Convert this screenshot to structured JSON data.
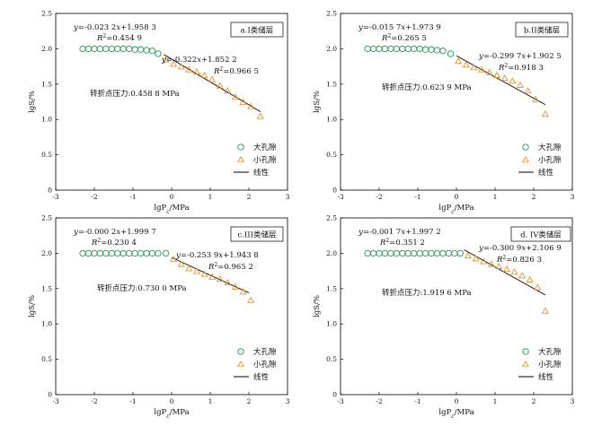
{
  "legend": {
    "large_pore": "大孔隙",
    "small_pore": "小孔隙",
    "linear": "线性"
  },
  "colors": {
    "large_pore": "#1f9a4a",
    "small_pore": "#e8912a",
    "line": "#000000"
  },
  "chart_data": [
    {
      "type": "scatter",
      "title": "a.I类储层",
      "xlabel": "lgP_c/MPa",
      "ylabel": "lgS/%",
      "xlim": [
        -3,
        3
      ],
      "ylim": [
        0,
        2.5
      ],
      "x_ticks": [
        "-3",
        "-2",
        "-1",
        "0",
        "1",
        "2",
        "3"
      ],
      "y_ticks": [
        "0",
        "0.5",
        "1.0",
        "1.5",
        "2.0",
        "2.5"
      ],
      "eq1_line1": "y=-0.023 2x+1.958 3",
      "eq1_line2": "R²=0.454 9",
      "eq2_line1": "y=-0.322x+1.852 2",
      "eq2_line2": "R²=0.966 5",
      "turning_point": "转折点压力:0.458 8 MPa",
      "series": [
        {
          "name": "大孔隙",
          "x": [
            -2.3,
            -2.15,
            -2.0,
            -1.85,
            -1.7,
            -1.55,
            -1.4,
            -1.25,
            -1.1,
            -0.95,
            -0.8,
            -0.65,
            -0.5,
            -0.35
          ],
          "y": [
            2.0,
            2.0,
            2.0,
            2.0,
            2.0,
            2.0,
            2.0,
            2.0,
            2.0,
            1.99,
            1.99,
            1.98,
            1.97,
            1.93
          ]
        },
        {
          "name": "小孔隙",
          "x": [
            -0.15,
            0.05,
            0.25,
            0.45,
            0.65,
            0.85,
            1.05,
            1.25,
            1.45,
            1.65,
            1.85,
            2.05,
            2.3
          ],
          "y": [
            1.84,
            1.78,
            1.74,
            1.7,
            1.67,
            1.62,
            1.56,
            1.47,
            1.4,
            1.31,
            1.24,
            1.18,
            1.04
          ]
        },
        {
          "name": "线性",
          "x": [
            -0.2,
            2.3
          ],
          "y": [
            1.92,
            1.11
          ]
        }
      ]
    },
    {
      "type": "scatter",
      "title": "b.II类储层",
      "xlabel": "lgP_c/MPa",
      "ylabel": "lgS/%",
      "xlim": [
        -3,
        3
      ],
      "ylim": [
        0,
        2.5
      ],
      "x_ticks": [
        "-3",
        "-2",
        "-1",
        "0",
        "1",
        "2",
        "3"
      ],
      "y_ticks": [
        "0",
        "0.5",
        "1.0",
        "1.5",
        "2.0",
        "2.5"
      ],
      "eq1_line1": "y=-0.015 7x+1.973 9",
      "eq1_line2": "R²=0.265 5",
      "eq2_line1": "y=-0.299 7x+1.902 5",
      "eq2_line2": "R²=0.918 3",
      "turning_point": "转折点压力:0.623 9 MPa",
      "series": [
        {
          "name": "大孔隙",
          "x": [
            -2.3,
            -2.15,
            -2.0,
            -1.85,
            -1.7,
            -1.55,
            -1.4,
            -1.25,
            -1.1,
            -0.95,
            -0.8,
            -0.65,
            -0.5,
            -0.35,
            -0.15
          ],
          "y": [
            2.0,
            2.0,
            2.0,
            2.0,
            2.0,
            2.0,
            2.0,
            2.0,
            2.0,
            2.0,
            1.99,
            1.99,
            1.98,
            1.97,
            1.93
          ]
        },
        {
          "name": "小孔隙",
          "x": [
            0.05,
            0.25,
            0.45,
            0.65,
            0.85,
            1.05,
            1.25,
            1.45,
            1.65,
            1.85,
            2.05,
            2.3
          ],
          "y": [
            1.82,
            1.77,
            1.73,
            1.7,
            1.66,
            1.62,
            1.58,
            1.54,
            1.48,
            1.4,
            1.28,
            1.07
          ]
        },
        {
          "name": "线性",
          "x": [
            0.0,
            2.3
          ],
          "y": [
            1.9,
            1.21
          ]
        }
      ]
    },
    {
      "type": "scatter",
      "title": "c.III类储层",
      "xlabel": "lgP_c/MPa",
      "ylabel": "lgS/%",
      "xlim": [
        -3,
        3
      ],
      "ylim": [
        0,
        2.5
      ],
      "x_ticks": [
        "-3",
        "-2",
        "-1",
        "0",
        "1",
        "2",
        "3"
      ],
      "y_ticks": [
        "0",
        "0.5",
        "1.0",
        "1.5",
        "2.0",
        "2.5"
      ],
      "eq1_line1": "y=-0.000 2x+1.999 7",
      "eq1_line2": "R²=0.230 4",
      "eq2_line1": "y=-0.253 9x+1.943 8",
      "eq2_line2": "R²=0.965 2",
      "turning_point": "转折点压力:0.730 0 MPa",
      "series": [
        {
          "name": "大孔隙",
          "x": [
            -2.3,
            -2.15,
            -2.0,
            -1.85,
            -1.7,
            -1.55,
            -1.4,
            -1.25,
            -1.1,
            -0.95,
            -0.8,
            -0.65,
            -0.5,
            -0.35,
            -0.15
          ],
          "y": [
            2.0,
            2.0,
            2.0,
            2.0,
            2.0,
            2.0,
            2.0,
            2.0,
            2.0,
            2.0,
            2.0,
            2.0,
            2.0,
            2.0,
            2.0
          ]
        },
        {
          "name": "小孔隙",
          "x": [
            0.05,
            0.25,
            0.45,
            0.65,
            0.85,
            1.05,
            1.25,
            1.45,
            1.65,
            1.85,
            2.05
          ],
          "y": [
            1.91,
            1.84,
            1.78,
            1.74,
            1.7,
            1.66,
            1.63,
            1.58,
            1.52,
            1.45,
            1.33
          ]
        },
        {
          "name": "线性",
          "x": [
            0.0,
            2.0
          ],
          "y": [
            1.94,
            1.44
          ]
        }
      ]
    },
    {
      "type": "scatter",
      "title": "d. IV类储层",
      "xlabel": "lgP_c/MPa",
      "ylabel": "lgS/%",
      "xlim": [
        -3,
        3
      ],
      "ylim": [
        0,
        2.5
      ],
      "x_ticks": [
        "-3",
        "-2",
        "-1",
        "0",
        "1",
        "2",
        "3"
      ],
      "y_ticks": [
        "0",
        "0.5",
        "1.0",
        "1.5",
        "2.0",
        "2.5"
      ],
      "eq1_line1": "y=-0.001 7x+1.997 2",
      "eq1_line2": "R²=0.351 2",
      "eq2_line1": "y=-0.300 9x+2.106 9",
      "eq2_line2": "R²=0.826 3",
      "turning_point": "转折点压力:1.919 6 MPa",
      "series": [
        {
          "name": "大孔隙",
          "x": [
            -2.3,
            -2.15,
            -2.0,
            -1.85,
            -1.7,
            -1.55,
            -1.4,
            -1.25,
            -1.1,
            -0.95,
            -0.8,
            -0.65,
            -0.5,
            -0.35,
            -0.2,
            -0.05,
            0.1
          ],
          "y": [
            2.0,
            2.0,
            2.0,
            2.0,
            2.0,
            2.0,
            2.0,
            2.0,
            2.0,
            2.0,
            2.0,
            2.0,
            2.0,
            2.0,
            2.0,
            2.0,
            2.0
          ]
        },
        {
          "name": "小孔隙",
          "x": [
            0.3,
            0.5,
            0.7,
            0.9,
            1.1,
            1.3,
            1.5,
            1.7,
            1.9,
            2.1,
            2.3
          ],
          "y": [
            1.96,
            1.92,
            1.88,
            1.84,
            1.81,
            1.77,
            1.73,
            1.68,
            1.62,
            1.51,
            1.18
          ]
        },
        {
          "name": "线性",
          "x": [
            0.2,
            2.3
          ],
          "y": [
            2.05,
            1.41
          ]
        }
      ]
    }
  ]
}
